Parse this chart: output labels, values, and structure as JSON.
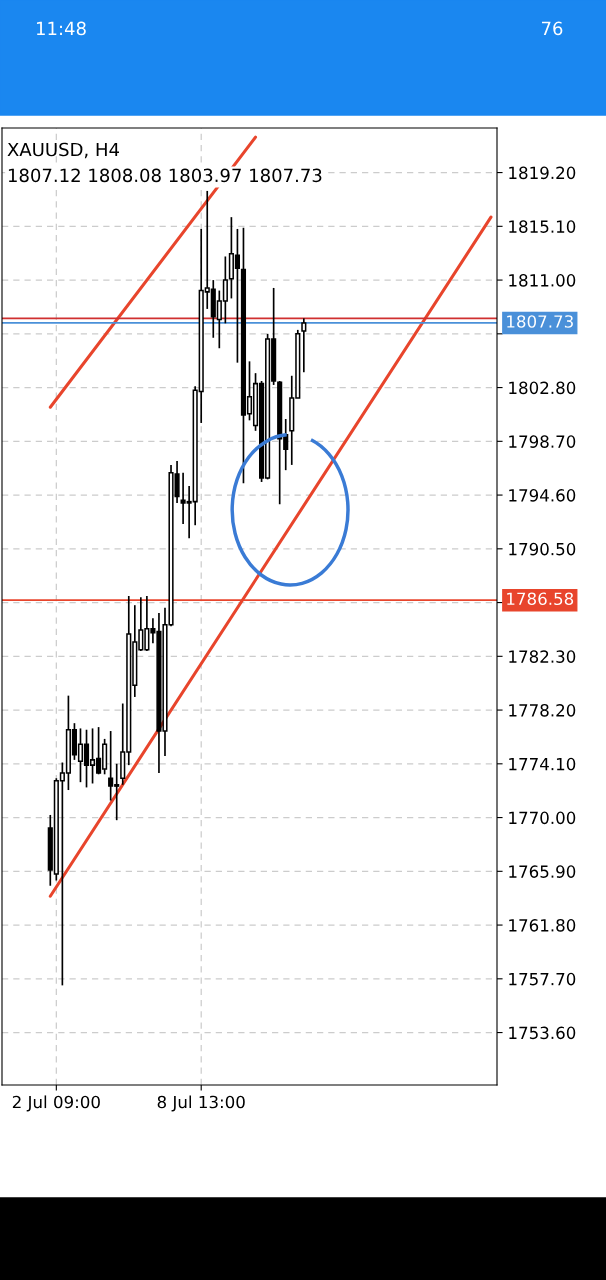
{
  "chart_data": {
    "type": "candlestick",
    "title": "XAUUSD, H4",
    "subtitle": "1807.12 1808.08 1803.97 1807.73",
    "annotations": [
      "11:48",
      "76"
    ],
    "categories": [
      null,
      "2 Jul 09:00",
      null,
      null,
      null,
      null,
      null,
      null,
      null,
      null,
      null,
      null,
      null,
      null,
      null,
      null,
      null,
      null,
      null,
      null,
      null,
      null,
      null,
      null,
      null,
      "8 Jul 13:00",
      null,
      null,
      null,
      null,
      null,
      null,
      null,
      null,
      null,
      null,
      null,
      null,
      null,
      null,
      null,
      null,
      null,
      null,
      null,
      null,
      null,
      null,
      null,
      null,
      null,
      null,
      null,
      null,
      null,
      null,
      null,
      null,
      null,
      null,
      null,
      null,
      null,
      null,
      null,
      null,
      null,
      null,
      null,
      null,
      null,
      null,
      null,
      null
    ],
    "ohlc": [
      [
        1769.2,
        1770.2,
        1764.8,
        1766.0
      ],
      [
        1765.7,
        1773.0,
        1765.2,
        1772.8
      ],
      [
        1772.8,
        1774.2,
        1757.2,
        1773.4
      ],
      [
        1773.4,
        1779.3,
        1772.1,
        1776.7
      ],
      [
        1776.7,
        1777.2,
        1774.4,
        1774.8
      ],
      [
        1774.3,
        1776.8,
        1772.7,
        1775.6
      ],
      [
        1775.6,
        1776.7,
        1772.3,
        1774.0
      ],
      [
        1774.0,
        1776.8,
        1772.6,
        1774.4
      ],
      [
        1774.5,
        1776.9,
        1773.3,
        1773.4
      ],
      [
        1773.7,
        1776.0,
        1773.3,
        1775.6
      ],
      [
        1773.0,
        1776.6,
        1771.3,
        1772.4
      ],
      [
        1772.5,
        1774.1,
        1769.8,
        1772.4
      ],
      [
        1773.0,
        1778.7,
        1772.5,
        1775.0
      ],
      [
        1775.0,
        1786.9,
        1774.0,
        1784.0
      ],
      [
        1780.1,
        1786.2,
        1779.2,
        1783.4
      ],
      [
        1782.8,
        1786.8,
        1782.7,
        1784.3
      ],
      [
        1782.8,
        1786.9,
        1782.7,
        1784.4
      ],
      [
        1784.4,
        1785.2,
        1783.3,
        1784.1
      ],
      [
        1784.2,
        1785.6,
        1773.4,
        1776.6
      ],
      [
        1776.6,
        1786.0,
        1774.7,
        1784.7
      ],
      [
        1784.7,
        1796.9,
        1784.6,
        1796.3
      ],
      [
        1796.2,
        1797.2,
        1794.0,
        1794.5
      ],
      [
        1794.2,
        1796.3,
        1792.4,
        1794.0
      ],
      [
        1794.1,
        1795.3,
        1791.3,
        1794.0
      ],
      [
        1794.1,
        1802.9,
        1792.3,
        1802.6
      ],
      [
        1802.5,
        1814.9,
        1800.1,
        1810.2
      ],
      [
        1810.1,
        1817.8,
        1808.8,
        1810.4
      ],
      [
        1810.3,
        1811.0,
        1806.6,
        1808.2
      ],
      [
        1808.0,
        1810.2,
        1805.8,
        1809.4
      ],
      [
        1809.4,
        1812.8,
        1807.7,
        1811.0
      ],
      [
        1811.1,
        1815.8,
        1809.6,
        1813.0
      ],
      [
        1812.9,
        1814.9,
        1804.7,
        1811.9
      ],
      [
        1811.8,
        1815.0,
        1795.5,
        1800.7
      ],
      [
        1800.8,
        1804.8,
        1800.3,
        1802.1
      ],
      [
        1799.9,
        1803.9,
        1799.5,
        1803.1
      ],
      [
        1803.1,
        1803.3,
        1795.6,
        1795.9
      ],
      [
        1795.9,
        1806.9,
        1795.8,
        1806.5
      ],
      [
        1806.5,
        1810.4,
        1803.0,
        1803.3
      ],
      [
        1803.2,
        1803.3,
        1793.9,
        1798.9
      ],
      [
        1799.2,
        1800.4,
        1796.5,
        1798.1
      ],
      [
        1799.5,
        1803.7,
        1796.9,
        1802.0
      ],
      [
        1802.0,
        1807.2,
        1802.0,
        1806.9
      ],
      [
        1807.12,
        1808.08,
        1803.97,
        1807.73
      ],
      null,
      null,
      null,
      null,
      null,
      null,
      null,
      null,
      null,
      null,
      null,
      null,
      null,
      null,
      null,
      null,
      null,
      null,
      null,
      null,
      null,
      null,
      null,
      null,
      null,
      null,
      null,
      null,
      null,
      null,
      null
    ],
    "series": [
      {
        "type": "line",
        "color": "#e8452c",
        "values": [
          1764.0,
          null,
          null,
          null,
          null,
          null,
          null,
          null,
          null,
          null,
          null,
          null,
          null,
          null,
          null,
          null,
          null,
          null,
          null,
          null,
          null,
          null,
          null,
          null,
          null,
          null,
          null,
          null,
          null,
          null,
          null,
          null,
          null,
          null,
          null,
          null,
          null,
          null,
          null,
          null,
          null,
          null,
          null,
          null,
          null,
          null,
          null,
          null,
          null,
          null,
          null,
          null,
          null,
          null,
          null,
          null,
          null,
          null,
          null,
          null,
          null,
          null,
          null,
          null,
          null,
          null,
          null,
          null,
          null,
          null,
          null,
          null,
          null,
          1815.8
        ]
      },
      {
        "type": "line",
        "color": "#e8452c",
        "values": [
          1801.3,
          null,
          null,
          null,
          null,
          null,
          null,
          null,
          null,
          null,
          null,
          null,
          null,
          null,
          null,
          null,
          null,
          null,
          null,
          null,
          null,
          null,
          null,
          null,
          null,
          null,
          null,
          null,
          null,
          null,
          null,
          null,
          null,
          null,
          1821.9,
          null,
          null,
          null,
          null,
          null,
          null,
          null,
          null,
          null,
          null,
          null,
          null,
          null,
          null,
          null,
          null,
          null,
          null,
          null,
          null,
          null,
          null,
          null,
          null,
          null,
          null,
          null,
          null,
          null,
          null,
          null,
          null,
          null,
          null,
          null,
          null,
          null,
          null,
          null
        ]
      }
    ],
    "ylim": [
      1749.6,
      1822.6
    ],
    "yticks": [
      {
        "value": 1819.2,
        "label": "1819.20"
      },
      {
        "value": 1815.1,
        "label": "1815.10"
      },
      {
        "value": 1811.0,
        "label": "1811.00"
      },
      {
        "value": 1806.9,
        "label": null
      },
      {
        "value": 1802.8,
        "label": "1802.80"
      },
      {
        "value": 1798.7,
        "label": "1798.70"
      },
      {
        "value": 1794.6,
        "label": "1794.60"
      },
      {
        "value": 1790.5,
        "label": "1790.50"
      },
      {
        "value": 1786.4,
        "label": null
      },
      {
        "value": 1782.3,
        "label": "1782.30"
      },
      {
        "value": 1778.2,
        "label": "1778.20"
      },
      {
        "value": 1774.1,
        "label": "1774.10"
      },
      {
        "value": 1770.0,
        "label": "1770.00"
      },
      {
        "value": 1765.9,
        "label": "1765.90"
      },
      {
        "value": 1761.8,
        "label": "1761.80"
      },
      {
        "value": 1757.7,
        "label": "1757.70"
      },
      {
        "value": 1753.6,
        "label": "1753.60"
      }
    ],
    "ref_lines": [
      {
        "axis": "y",
        "value": 1786.58,
        "label": "1786.58",
        "color": "#e8452c"
      },
      {
        "axis": "y",
        "value": 1808.08,
        "color": "#d03030"
      },
      {
        "axis": "y",
        "value": 1807.73,
        "label": "1807.73",
        "color": "#4a90d9"
      }
    ],
    "grid": true,
    "legend": false
  }
}
